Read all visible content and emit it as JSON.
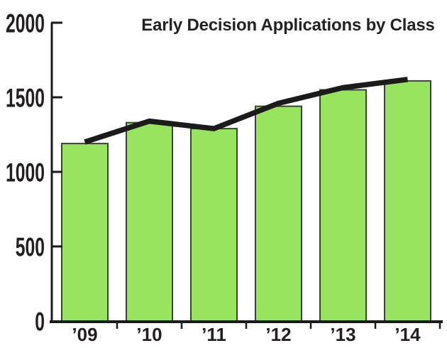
{
  "window": {
    "background_color": "#ffffff"
  },
  "chart_data": {
    "type": "bar",
    "title": "Early Decision Applications by Class",
    "categories": [
      "’09",
      "’10",
      "’11",
      "’12",
      "’13",
      "’14"
    ],
    "series": [
      {
        "name": "early-decision-applications-bars",
        "type": "bar",
        "values": [
          1190,
          1330,
          1290,
          1440,
          1550,
          1610
        ]
      },
      {
        "name": "early-decision-applications-trend",
        "type": "line",
        "values": [
          1200,
          1340,
          1290,
          1460,
          1565,
          1620
        ]
      }
    ],
    "xlabel": "",
    "ylabel": "",
    "ylim": [
      0,
      2000
    ],
    "yticks": [
      0,
      500,
      1000,
      1500,
      2000
    ],
    "ytick_labels": [
      "0",
      "500",
      "1000",
      "1500",
      "2000"
    ],
    "grid": false,
    "legend": false
  },
  "style": {
    "bar_fill": "#99E45F",
    "bar_border": "#3A423A",
    "line_color": "#1B1B1B",
    "axis_color": "#1B1B1B",
    "text_color": "#231F20"
  }
}
